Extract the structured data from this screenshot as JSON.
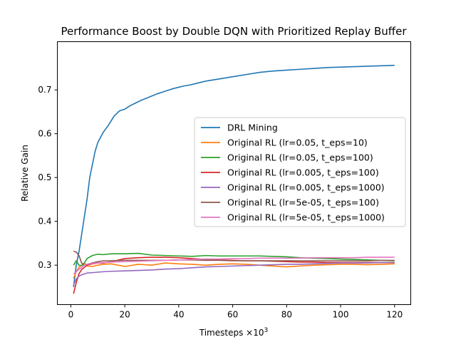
{
  "chart_data": {
    "type": "line",
    "title": "Performance Boost by Double DQN with Prioritized Replay Buffer",
    "xlabel_main": "Timesteps ×10",
    "xlabel_exp": "3",
    "ylabel": "Relative Gain",
    "xlim": [
      -5,
      126
    ],
    "ylim": [
      0.21,
      0.81
    ],
    "xticks": [
      0,
      20,
      40,
      60,
      80,
      100,
      120
    ],
    "yticks": [
      0.3,
      0.4,
      0.5,
      0.6,
      0.7
    ],
    "xtick_labels": [
      "0",
      "20",
      "40",
      "60",
      "80",
      "100",
      "120"
    ],
    "ytick_labels": [
      "0.3",
      "0.4",
      "0.5",
      "0.6",
      "0.7"
    ],
    "grid": false,
    "legend_position": "center-right",
    "series": [
      {
        "name": "DRL Mining",
        "color": "#1f77b4",
        "points": [
          [
            1,
            0.25
          ],
          [
            2,
            0.3
          ],
          [
            3,
            0.33
          ],
          [
            4,
            0.37
          ],
          [
            5,
            0.41
          ],
          [
            6,
            0.45
          ],
          [
            7,
            0.5
          ],
          [
            8,
            0.53
          ],
          [
            9,
            0.56
          ],
          [
            10,
            0.58
          ],
          [
            12,
            0.603
          ],
          [
            14,
            0.62
          ],
          [
            16,
            0.64
          ],
          [
            18,
            0.652
          ],
          [
            20,
            0.656
          ],
          [
            22,
            0.664
          ],
          [
            24,
            0.67
          ],
          [
            26,
            0.676
          ],
          [
            28,
            0.681
          ],
          [
            30,
            0.686
          ],
          [
            32,
            0.691
          ],
          [
            34,
            0.695
          ],
          [
            36,
            0.699
          ],
          [
            38,
            0.703
          ],
          [
            40,
            0.706
          ],
          [
            42,
            0.709
          ],
          [
            44,
            0.711
          ],
          [
            46,
            0.714
          ],
          [
            48,
            0.717
          ],
          [
            50,
            0.72
          ],
          [
            55,
            0.725
          ],
          [
            60,
            0.73
          ],
          [
            65,
            0.735
          ],
          [
            70,
            0.74
          ],
          [
            75,
            0.743
          ],
          [
            80,
            0.745
          ],
          [
            85,
            0.747
          ],
          [
            90,
            0.749
          ],
          [
            95,
            0.751
          ],
          [
            100,
            0.752
          ],
          [
            105,
            0.753
          ],
          [
            110,
            0.754
          ],
          [
            115,
            0.755
          ],
          [
            120,
            0.756
          ]
        ]
      },
      {
        "name": "Original RL (lr=0.05, t_eps=10)",
        "color": "#ff7f0e",
        "points": [
          [
            1,
            0.27
          ],
          [
            2,
            0.285
          ],
          [
            3,
            0.295
          ],
          [
            4,
            0.3
          ],
          [
            5,
            0.305
          ],
          [
            6,
            0.298
          ],
          [
            8,
            0.297
          ],
          [
            10,
            0.3
          ],
          [
            12,
            0.302
          ],
          [
            15,
            0.303
          ],
          [
            20,
            0.297
          ],
          [
            25,
            0.302
          ],
          [
            30,
            0.3
          ],
          [
            35,
            0.305
          ],
          [
            40,
            0.303
          ],
          [
            45,
            0.302
          ],
          [
            50,
            0.3
          ],
          [
            55,
            0.302
          ],
          [
            60,
            0.303
          ],
          [
            65,
            0.302
          ],
          [
            70,
            0.3
          ],
          [
            75,
            0.298
          ],
          [
            80,
            0.296
          ],
          [
            85,
            0.298
          ],
          [
            90,
            0.3
          ],
          [
            95,
            0.301
          ],
          [
            100,
            0.302
          ],
          [
            105,
            0.302
          ],
          [
            110,
            0.301
          ],
          [
            115,
            0.302
          ],
          [
            120,
            0.303
          ]
        ]
      },
      {
        "name": "Original RL (lr=0.05, t_eps=100)",
        "color": "#2ca02c",
        "points": [
          [
            1,
            0.3
          ],
          [
            2,
            0.31
          ],
          [
            3,
            0.3
          ],
          [
            4,
            0.299
          ],
          [
            5,
            0.305
          ],
          [
            6,
            0.315
          ],
          [
            8,
            0.322
          ],
          [
            10,
            0.325
          ],
          [
            12,
            0.324
          ],
          [
            15,
            0.326
          ],
          [
            20,
            0.326
          ],
          [
            25,
            0.327
          ],
          [
            30,
            0.323
          ],
          [
            35,
            0.322
          ],
          [
            40,
            0.321
          ],
          [
            45,
            0.32
          ],
          [
            50,
            0.322
          ],
          [
            55,
            0.321
          ],
          [
            60,
            0.321
          ],
          [
            65,
            0.321
          ],
          [
            70,
            0.321
          ],
          [
            75,
            0.32
          ],
          [
            80,
            0.319
          ],
          [
            85,
            0.317
          ],
          [
            90,
            0.316
          ],
          [
            95,
            0.315
          ],
          [
            100,
            0.314
          ],
          [
            105,
            0.313
          ],
          [
            110,
            0.312
          ],
          [
            115,
            0.311
          ],
          [
            120,
            0.31
          ]
        ]
      },
      {
        "name": "Original RL (lr=0.005, t_eps=100)",
        "color": "#d62728",
        "points": [
          [
            1,
            0.235
          ],
          [
            2,
            0.26
          ],
          [
            3,
            0.28
          ],
          [
            4,
            0.29
          ],
          [
            5,
            0.295
          ],
          [
            6,
            0.3
          ],
          [
            8,
            0.303
          ],
          [
            10,
            0.305
          ],
          [
            12,
            0.305
          ],
          [
            15,
            0.308
          ],
          [
            20,
            0.315
          ],
          [
            25,
            0.317
          ],
          [
            30,
            0.318
          ],
          [
            35,
            0.318
          ],
          [
            40,
            0.317
          ],
          [
            45,
            0.315
          ],
          [
            50,
            0.313
          ],
          [
            55,
            0.312
          ],
          [
            60,
            0.311
          ],
          [
            65,
            0.31
          ],
          [
            70,
            0.31
          ],
          [
            75,
            0.309
          ],
          [
            80,
            0.308
          ],
          [
            85,
            0.307
          ],
          [
            90,
            0.307
          ],
          [
            95,
            0.306
          ],
          [
            100,
            0.306
          ],
          [
            105,
            0.306
          ],
          [
            110,
            0.306
          ],
          [
            115,
            0.306
          ],
          [
            120,
            0.306
          ]
        ]
      },
      {
        "name": "Original RL (lr=0.005, t_eps=1000)",
        "color": "#9467bd",
        "points": [
          [
            1,
            0.255
          ],
          [
            2,
            0.268
          ],
          [
            3,
            0.275
          ],
          [
            4,
            0.278
          ],
          [
            5,
            0.28
          ],
          [
            6,
            0.282
          ],
          [
            8,
            0.283
          ],
          [
            10,
            0.284
          ],
          [
            12,
            0.285
          ],
          [
            15,
            0.286
          ],
          [
            20,
            0.287
          ],
          [
            25,
            0.288
          ],
          [
            30,
            0.289
          ],
          [
            35,
            0.291
          ],
          [
            40,
            0.292
          ],
          [
            45,
            0.294
          ],
          [
            50,
            0.296
          ],
          [
            55,
            0.297
          ],
          [
            60,
            0.298
          ],
          [
            65,
            0.299
          ],
          [
            70,
            0.3
          ],
          [
            75,
            0.301
          ],
          [
            80,
            0.302
          ],
          [
            85,
            0.302
          ],
          [
            90,
            0.303
          ],
          [
            95,
            0.304
          ],
          [
            100,
            0.305
          ],
          [
            105,
            0.305
          ],
          [
            110,
            0.305
          ],
          [
            115,
            0.306
          ],
          [
            120,
            0.306
          ]
        ]
      },
      {
        "name": "Original RL (lr=5e-05, t_eps=100)",
        "color": "#8c564b",
        "points": [
          [
            1,
            0.332
          ],
          [
            2,
            0.33
          ],
          [
            3,
            0.322
          ],
          [
            4,
            0.305
          ],
          [
            5,
            0.3
          ],
          [
            6,
            0.302
          ],
          [
            8,
            0.305
          ],
          [
            10,
            0.308
          ],
          [
            12,
            0.31
          ],
          [
            15,
            0.31
          ],
          [
            20,
            0.311
          ],
          [
            25,
            0.311
          ],
          [
            30,
            0.311
          ],
          [
            35,
            0.311
          ],
          [
            40,
            0.312
          ],
          [
            45,
            0.312
          ],
          [
            50,
            0.311
          ],
          [
            55,
            0.311
          ],
          [
            60,
            0.31
          ],
          [
            65,
            0.31
          ],
          [
            70,
            0.31
          ],
          [
            75,
            0.31
          ],
          [
            80,
            0.31
          ],
          [
            85,
            0.31
          ],
          [
            90,
            0.31
          ],
          [
            95,
            0.31
          ],
          [
            100,
            0.31
          ],
          [
            105,
            0.31
          ],
          [
            110,
            0.31
          ],
          [
            115,
            0.311
          ],
          [
            120,
            0.311
          ]
        ]
      },
      {
        "name": "Original RL (lr=5e-05, t_eps=1000)",
        "color": "#e377c2",
        "points": [
          [
            1,
            0.28
          ],
          [
            2,
            0.285
          ],
          [
            3,
            0.29
          ],
          [
            4,
            0.295
          ],
          [
            5,
            0.3
          ],
          [
            6,
            0.302
          ],
          [
            8,
            0.304
          ],
          [
            10,
            0.305
          ],
          [
            12,
            0.306
          ],
          [
            15,
            0.307
          ],
          [
            20,
            0.308
          ],
          [
            25,
            0.309
          ],
          [
            30,
            0.31
          ],
          [
            35,
            0.311
          ],
          [
            40,
            0.312
          ],
          [
            45,
            0.313
          ],
          [
            50,
            0.314
          ],
          [
            55,
            0.314
          ],
          [
            60,
            0.315
          ],
          [
            65,
            0.315
          ],
          [
            70,
            0.316
          ],
          [
            75,
            0.316
          ],
          [
            80,
            0.316
          ],
          [
            85,
            0.316
          ],
          [
            90,
            0.317
          ],
          [
            95,
            0.317
          ],
          [
            100,
            0.317
          ],
          [
            105,
            0.317
          ],
          [
            110,
            0.318
          ],
          [
            115,
            0.318
          ],
          [
            120,
            0.318
          ]
        ]
      }
    ]
  }
}
